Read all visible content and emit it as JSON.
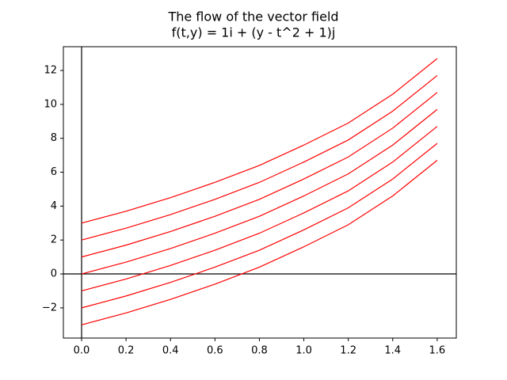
{
  "chart_data": {
    "type": "line",
    "title_lines": [
      "The flow of the vector field",
      "f(t,y) = 1i + (y - t^2 + 1)j"
    ],
    "x": [
      0,
      0.2,
      0.4,
      0.6,
      0.8,
      1.0,
      1.2,
      1.4,
      1.6
    ],
    "series": [
      {
        "color": "#ff0000",
        "values": [
          3,
          3.7,
          4.5,
          5.4,
          6.4,
          7.6,
          8.9,
          10.6,
          12.7
        ]
      },
      {
        "color": "#ff0000",
        "values": [
          2,
          2.7,
          3.5,
          4.4,
          5.4,
          6.6,
          7.9,
          9.6,
          11.7
        ]
      },
      {
        "color": "#ff0000",
        "values": [
          1,
          1.7,
          2.5,
          3.4,
          4.4,
          5.6,
          6.9,
          8.6,
          10.7
        ]
      },
      {
        "color": "#ff0000",
        "values": [
          0,
          0.7,
          1.5,
          2.4,
          3.4,
          4.6,
          5.9,
          7.6,
          9.7
        ]
      },
      {
        "color": "#ff0000",
        "values": [
          -1,
          -0.3,
          0.5,
          1.4,
          2.4,
          3.6,
          4.9,
          6.6,
          8.7
        ]
      },
      {
        "color": "#ff0000",
        "values": [
          -2,
          -1.3,
          -0.5,
          0.4,
          1.4,
          2.6,
          3.9,
          5.6,
          7.7
        ]
      },
      {
        "color": "#ff0000",
        "values": [
          -3,
          -2.3,
          -1.5,
          -0.6,
          0.4,
          1.6,
          2.9,
          4.6,
          6.7
        ]
      }
    ],
    "xlim": [
      -0.082,
      1.686
    ],
    "ylim": [
      -3.78,
      13.4
    ],
    "xticks": [
      {
        "value": 0,
        "label": "0.0"
      },
      {
        "value": 0.2,
        "label": "0.2"
      },
      {
        "value": 0.4,
        "label": "0.4"
      },
      {
        "value": 0.6,
        "label": "0.6"
      },
      {
        "value": 0.8,
        "label": "0.8"
      },
      {
        "value": 1.0,
        "label": "1.0"
      },
      {
        "value": 1.2,
        "label": "1.2"
      },
      {
        "value": 1.4,
        "label": "1.4"
      },
      {
        "value": 1.6,
        "label": "1.6"
      }
    ],
    "yticks": [
      {
        "value": -2,
        "label": "−2"
      },
      0,
      2,
      4,
      6,
      8,
      10,
      12
    ]
  }
}
